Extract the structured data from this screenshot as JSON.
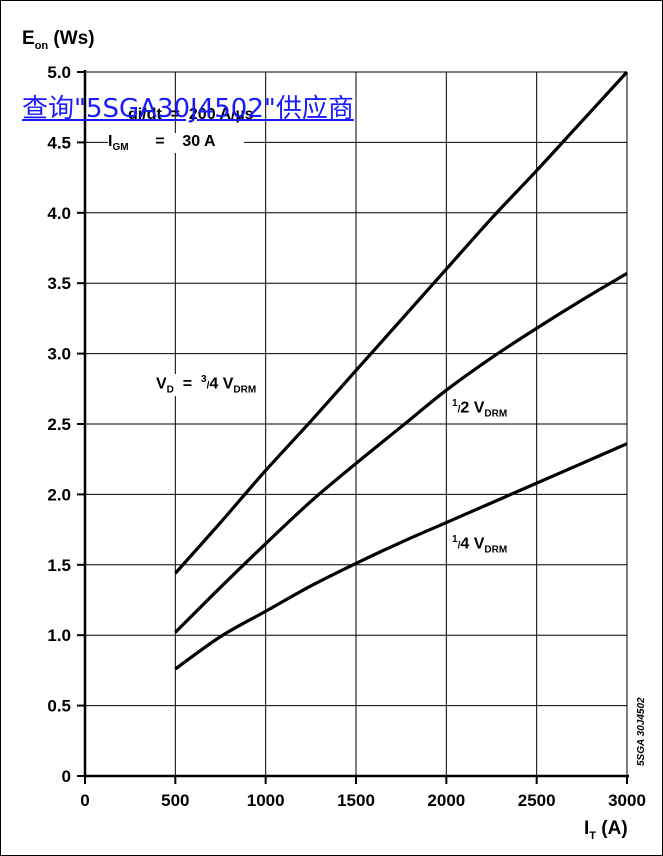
{
  "vendor_link": {
    "text": "查询\"5SGA30J4502\"供应商"
  },
  "chart_data": {
    "type": "line",
    "ylabel": {
      "main": "E",
      "sub": "on",
      "unit": "(Ws)"
    },
    "xlabel": {
      "main": "I",
      "sub": "T",
      "unit": "(A)"
    },
    "xlim": [
      0,
      3000
    ],
    "ylim": [
      0,
      5.0
    ],
    "xticks": [
      0,
      500,
      1000,
      1500,
      2000,
      2500,
      3000
    ],
    "yticks": [
      0,
      0.5,
      1.0,
      1.5,
      2.0,
      2.5,
      3.0,
      3.5,
      4.0,
      4.5,
      5.0
    ],
    "xtick_labels": [
      "0",
      "500",
      "1000",
      "1500",
      "2000",
      "2500",
      "3000"
    ],
    "ytick_labels": [
      "0",
      "0.5",
      "1.0",
      "1.5",
      "2.0",
      "2.5",
      "3.0",
      "3.5",
      "4.0",
      "4.5",
      "5.0"
    ],
    "grid": true,
    "conditions": [
      {
        "left": "di/dt",
        "op": "=",
        "right": "200 A/µs"
      },
      {
        "left": "I",
        "left_sub": "GM",
        "op": "=",
        "right": "30 A"
      }
    ],
    "series": [
      {
        "name": "V_D = 3/4 V_DRM",
        "x": [
          500,
          750,
          1000,
          1250,
          1500,
          1750,
          2000,
          2250,
          2500,
          2750,
          3000
        ],
        "y": [
          1.44,
          1.8,
          2.17,
          2.52,
          2.88,
          3.24,
          3.6,
          3.96,
          4.3,
          4.65,
          5.0
        ]
      },
      {
        "name": "1/2 V_DRM",
        "x": [
          500,
          750,
          1000,
          1250,
          1500,
          1750,
          2000,
          2250,
          2500,
          2750,
          3000
        ],
        "y": [
          1.02,
          1.34,
          1.65,
          1.95,
          2.22,
          2.48,
          2.74,
          2.97,
          3.18,
          3.38,
          3.57
        ]
      },
      {
        "name": "1/4 V_DRM",
        "x": [
          500,
          750,
          1000,
          1250,
          1500,
          1750,
          2000,
          2250,
          2500,
          2750,
          3000
        ],
        "y": [
          0.76,
          0.99,
          1.17,
          1.35,
          1.51,
          1.66,
          1.8,
          1.94,
          2.08,
          2.22,
          2.36
        ]
      }
    ],
    "curve_labels": [
      {
        "main": "V",
        "sub": "D",
        "eq": "=",
        "frac_num": "3",
        "frac_den": "4",
        "v": "V",
        "v_sub": "DRM"
      },
      {
        "frac_num": "1",
        "frac_den": "2",
        "v": "V",
        "v_sub": "DRM"
      },
      {
        "frac_num": "1",
        "frac_den": "4",
        "v": "V",
        "v_sub": "DRM"
      }
    ],
    "watermark": "5SGA 30J4502"
  }
}
